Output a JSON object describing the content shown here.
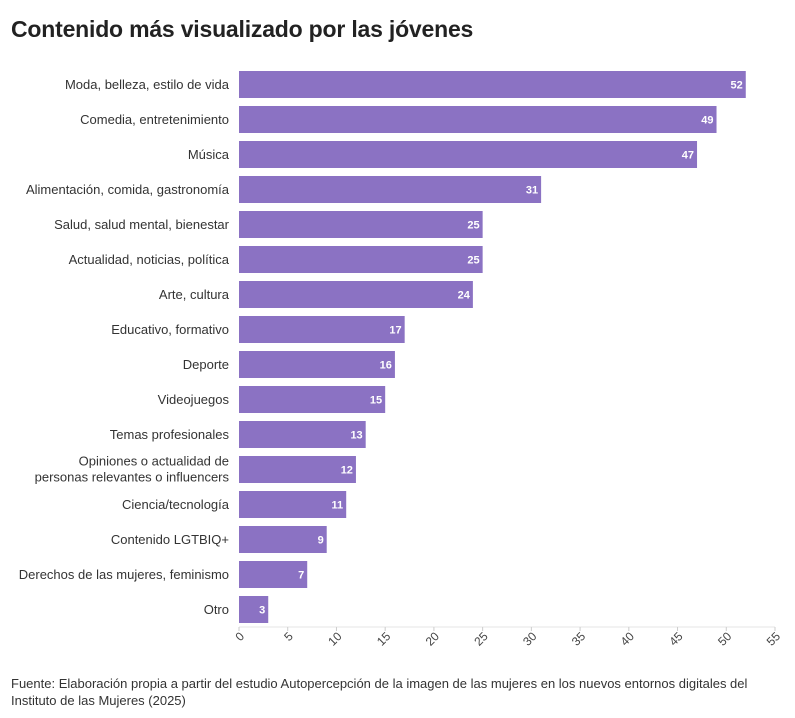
{
  "title": "Contenido más visualizado por las jóvenes",
  "source": "Fuente: Elaboración propia a partir del estudio Autopercepción de la imagen de las mujeres en los nuevos entornos digitales del Instituto de las Mujeres (2025)",
  "colors": {
    "bar": "#8b72c3",
    "value_text": "#ffffff",
    "gridline": "#e6e6e6"
  },
  "chart_data": {
    "type": "bar",
    "orientation": "horizontal",
    "title": "Contenido más visualizado por las jóvenes",
    "categories": [
      "Moda, belleza, estilo de vida",
      "Comedia, entretenimiento",
      "Música",
      "Alimentación, comida, gastronomía",
      "Salud, salud mental, bienestar",
      "Actualidad, noticias, política",
      "Arte, cultura",
      "Educativo, formativo",
      "Deporte",
      "Videojuegos",
      "Temas profesionales",
      "Opiniones o actualidad de personas relevantes o influencers",
      "Ciencia/tecnología",
      "Contenido LGTBIQ+",
      "Derechos de las mujeres, feminismo",
      "Otro"
    ],
    "values": [
      52,
      49,
      47,
      31,
      25,
      25,
      24,
      17,
      16,
      15,
      13,
      12,
      11,
      9,
      7,
      3
    ],
    "xlim": [
      0,
      55
    ],
    "xticks": [
      0,
      5,
      10,
      15,
      20,
      25,
      30,
      35,
      40,
      45,
      50,
      55
    ],
    "data_labels": true,
    "grid": false
  }
}
